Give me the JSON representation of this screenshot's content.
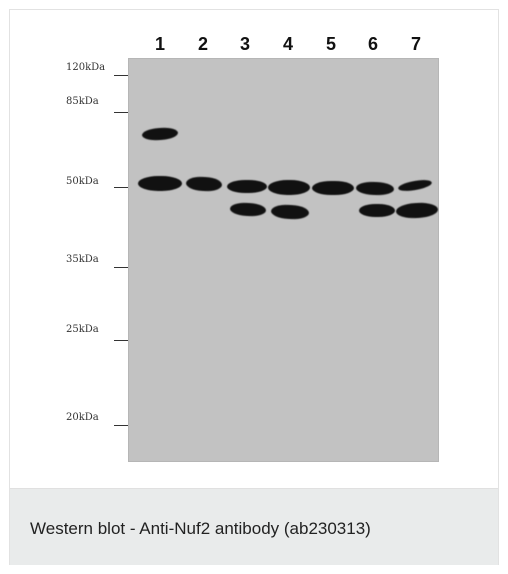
{
  "figure": {
    "lanes": [
      "1",
      "2",
      "3",
      "4",
      "5",
      "6",
      "7"
    ],
    "markers": [
      "120kDa",
      "85kDa",
      "50kDa",
      "35kDa",
      "25kDa",
      "20kDa"
    ]
  },
  "caption": "Western blot - Anti-Nuf2 antibody (ab230313)",
  "colors": {
    "membrane": "#c2c2c2",
    "bands": "#111111",
    "caption_background": "#e9ebeb"
  }
}
